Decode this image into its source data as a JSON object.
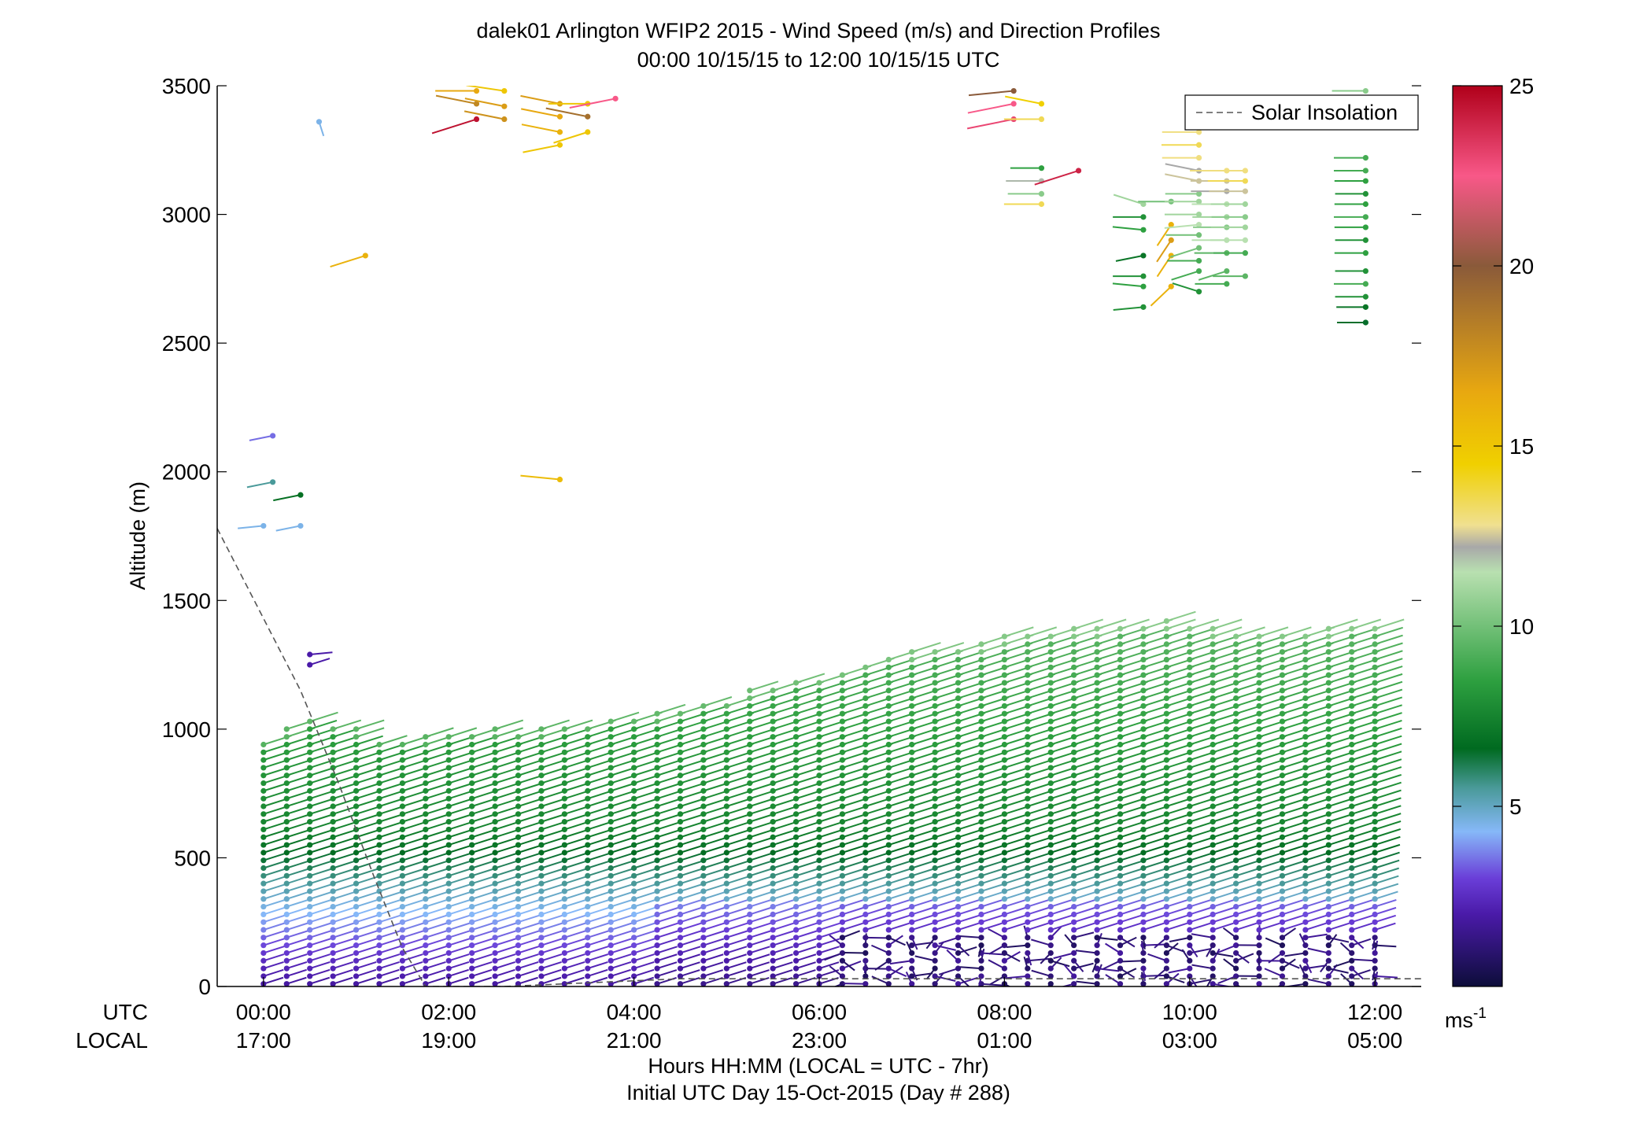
{
  "chart_data": {
    "type": "wind-barb-profile",
    "title": "dalek01 Arlington WFIP2 2015 - Wind Speed (m/s) and Direction Profiles",
    "subtitle": "00:00 10/15/15 to 12:00 10/15/15  UTC",
    "ylabel": "Altitude (m)",
    "xlabel": "Hours HH:MM  (LOCAL = UTC - 7hr)",
    "xlabel2": "Initial UTC Day 15-Oct-2015 (Day # 288)",
    "ylim": [
      0,
      3500
    ],
    "xlim_hours": [
      -0.5,
      12.5
    ],
    "yticks": [
      "0",
      "500",
      "1000",
      "1500",
      "2000",
      "2500",
      "3000",
      "3500"
    ],
    "ytick_values": [
      0,
      500,
      1000,
      1500,
      2000,
      2500,
      3000,
      3500
    ],
    "utc_label": "UTC",
    "local_label": "LOCAL",
    "xticks_utc": [
      "00:00",
      "02:00",
      "04:00",
      "06:00",
      "08:00",
      "10:00",
      "12:00"
    ],
    "xticks_local": [
      "17:00",
      "19:00",
      "21:00",
      "23:00",
      "01:00",
      "03:00",
      "05:00"
    ],
    "xtick_hours": [
      0,
      2,
      4,
      6,
      8,
      10,
      12
    ],
    "legend": {
      "entries": [
        "Solar Insolation"
      ],
      "placement": "top-right"
    },
    "colorbar": {
      "unit_label": "ms",
      "unit_exponent": "-1",
      "ticks": [
        "5",
        "10",
        "15",
        "20",
        "25"
      ],
      "tick_values": [
        5,
        10,
        15,
        20,
        25
      ],
      "range": [
        0,
        25
      ],
      "stops": [
        {
          "v": 0,
          "c": "#0d0d3a"
        },
        {
          "v": 2,
          "c": "#4a1aa8"
        },
        {
          "v": 3,
          "c": "#6a3ed8"
        },
        {
          "v": 4.3,
          "c": "#86b8f8"
        },
        {
          "v": 5.5,
          "c": "#4a9a9a"
        },
        {
          "v": 6.6,
          "c": "#006a20"
        },
        {
          "v": 8.5,
          "c": "#2ea040"
        },
        {
          "v": 11.5,
          "c": "#b8e0b0"
        },
        {
          "v": 12.2,
          "c": "#a8a8a8"
        },
        {
          "v": 12.8,
          "c": "#f0e090"
        },
        {
          "v": 14.5,
          "c": "#f0d000"
        },
        {
          "v": 16.5,
          "c": "#e8a810"
        },
        {
          "v": 20,
          "c": "#8a5a3a"
        },
        {
          "v": 22.5,
          "c": "#f85888"
        },
        {
          "v": 25,
          "c": "#b0001a"
        }
      ]
    },
    "solar_insolation": [
      {
        "hour": -0.5,
        "alt": 1780
      },
      {
        "hour": -0.1,
        "alt": 1500
      },
      {
        "hour": 0.4,
        "alt": 1150
      },
      {
        "hour": 0.8,
        "alt": 800
      },
      {
        "hour": 1.2,
        "alt": 420
      },
      {
        "hour": 1.5,
        "alt": 150
      },
      {
        "hour": 1.75,
        "alt": 0
      },
      {
        "hour": 2.6,
        "alt": 0
      },
      {
        "hour": 4.5,
        "alt": 30
      },
      {
        "hour": 12.5,
        "alt": 30
      }
    ],
    "profile_times_hours": [
      0.0,
      0.25,
      0.5,
      0.75,
      1.0,
      1.25,
      1.5,
      1.75,
      2.0,
      2.25,
      2.5,
      2.75,
      3.0,
      3.25,
      3.5,
      3.75,
      4.0,
      4.25,
      4.5,
      4.75,
      5.0,
      5.25,
      5.5,
      5.75,
      6.0,
      6.25,
      6.5,
      6.75,
      7.0,
      7.25,
      7.5,
      7.75,
      8.0,
      8.25,
      8.5,
      8.75,
      9.0,
      9.25,
      9.5,
      9.75,
      10.0,
      10.25,
      10.5,
      10.75,
      11.0,
      11.25,
      11.5,
      11.75,
      12.0
    ],
    "profile_top_altitude_m": [
      950,
      1000,
      1050,
      1020,
      1000,
      960,
      950,
      970,
      980,
      990,
      1000,
      990,
      1000,
      1010,
      1020,
      1040,
      1050,
      1060,
      1080,
      1100,
      1110,
      1150,
      1170,
      1190,
      1200,
      1230,
      1260,
      1290,
      1300,
      1310,
      1320,
      1330,
      1360,
      1370,
      1380,
      1390,
      1390,
      1400,
      1410,
      1420,
      1400,
      1390,
      1380,
      1370,
      1370,
      1380,
      1390,
      1400,
      1410
    ],
    "profile_sample_spacing_m": 30,
    "speed_profile_by_altitude": [
      {
        "alt": 0,
        "speed": 1.8
      },
      {
        "alt": 100,
        "speed": 2.5
      },
      {
        "alt": 250,
        "speed": 4.0
      },
      {
        "alt": 400,
        "speed": 5.5
      },
      {
        "alt": 600,
        "speed": 7.5
      },
      {
        "alt": 1000,
        "speed": 8.5
      },
      {
        "alt": 1400,
        "speed": 9.5
      }
    ],
    "calm_hours_near_surface": [
      6.25,
      12.0
    ],
    "upper_level_samples": [
      {
        "hour": 0.6,
        "alt": 3360,
        "speed": 4.5,
        "dir": 170
      },
      {
        "hour": 0.1,
        "alt": 2140,
        "speed": 3.5,
        "dir": 250
      },
      {
        "hour": 0.1,
        "alt": 1960,
        "speed": 5.5,
        "dir": 250
      },
      {
        "hour": 0.4,
        "alt": 1910,
        "speed": 6.8,
        "dir": 250
      },
      {
        "hour": 0.0,
        "alt": 1790,
        "speed": 4.5,
        "dir": 260
      },
      {
        "hour": 0.4,
        "alt": 1790,
        "speed": 4.5,
        "dir": 250
      },
      {
        "hour": 0.5,
        "alt": 1290,
        "speed": 2.0,
        "dir": 80
      },
      {
        "hour": 0.5,
        "alt": 1250,
        "speed": 2.0,
        "dir": 60
      },
      {
        "hour": 1.1,
        "alt": 2840,
        "speed": 16.0,
        "dir": 240
      },
      {
        "hour": 2.3,
        "alt": 3480,
        "speed": 16.5,
        "dir": 270
      },
      {
        "hour": 2.6,
        "alt": 3480,
        "speed": 15.0,
        "dir": 285
      },
      {
        "hour": 2.3,
        "alt": 3430,
        "speed": 18.0,
        "dir": 290
      },
      {
        "hour": 2.6,
        "alt": 3420,
        "speed": 17.0,
        "dir": 290
      },
      {
        "hour": 2.3,
        "alt": 3370,
        "speed": 24.5,
        "dir": 240
      },
      {
        "hour": 2.6,
        "alt": 3370,
        "speed": 17.5,
        "dir": 290
      },
      {
        "hour": 3.2,
        "alt": 3430,
        "speed": 17.0,
        "dir": 290
      },
      {
        "hour": 3.5,
        "alt": 3430,
        "speed": 15.0,
        "dir": 270
      },
      {
        "hour": 3.2,
        "alt": 3380,
        "speed": 16.5,
        "dir": 290
      },
      {
        "hour": 3.5,
        "alt": 3380,
        "speed": 19.0,
        "dir": 290
      },
      {
        "hour": 3.2,
        "alt": 3320,
        "speed": 16.0,
        "dir": 290
      },
      {
        "hour": 3.5,
        "alt": 3320,
        "speed": 15.0,
        "dir": 240
      },
      {
        "hour": 3.2,
        "alt": 3270,
        "speed": 15.0,
        "dir": 250
      },
      {
        "hour": 3.8,
        "alt": 3450,
        "speed": 22.5,
        "dir": 250
      },
      {
        "hour": 3.2,
        "alt": 1970,
        "speed": 15.5,
        "dir": 280
      },
      {
        "hour": 8.1,
        "alt": 3480,
        "speed": 20.0,
        "dir": 260
      },
      {
        "hour": 8.1,
        "alt": 3430,
        "speed": 22.5,
        "dir": 250
      },
      {
        "hour": 8.4,
        "alt": 3430,
        "speed": 14.5,
        "dir": 290
      },
      {
        "hour": 8.1,
        "alt": 3370,
        "speed": 23.0,
        "dir": 250
      },
      {
        "hour": 8.4,
        "alt": 3370,
        "speed": 13.5,
        "dir": 270
      },
      {
        "hour": 8.4,
        "alt": 3180,
        "speed": 8.5,
        "dir": 270
      },
      {
        "hour": 8.4,
        "alt": 3130,
        "speed": 12.0,
        "dir": 270
      },
      {
        "hour": 8.4,
        "alt": 3080,
        "speed": 10.5,
        "dir": 270
      },
      {
        "hour": 8.4,
        "alt": 3040,
        "speed": 13.5,
        "dir": 270
      },
      {
        "hour": 8.8,
        "alt": 3170,
        "speed": 24.0,
        "dir": 240
      },
      {
        "hour": 9.5,
        "alt": 3040,
        "speed": 11.0,
        "dir": 300
      },
      {
        "hour": 9.5,
        "alt": 2990,
        "speed": 8.0,
        "dir": 270
      },
      {
        "hour": 9.5,
        "alt": 2940,
        "speed": 8.5,
        "dir": 280
      },
      {
        "hour": 9.5,
        "alt": 2840,
        "speed": 7.0,
        "dir": 250
      },
      {
        "hour": 9.5,
        "alt": 2760,
        "speed": 8.0,
        "dir": 270
      },
      {
        "hour": 9.5,
        "alt": 2720,
        "speed": 8.5,
        "dir": 280
      },
      {
        "hour": 9.5,
        "alt": 2640,
        "speed": 8.0,
        "dir": 260
      },
      {
        "hour": 9.8,
        "alt": 3050,
        "speed": 10.0,
        "dir": 270
      },
      {
        "hour": 9.8,
        "alt": 2960,
        "speed": 16.0,
        "dir": 200
      },
      {
        "hour": 9.8,
        "alt": 2900,
        "speed": 17.0,
        "dir": 200
      },
      {
        "hour": 9.8,
        "alt": 2840,
        "speed": 16.0,
        "dir": 200
      },
      {
        "hour": 9.8,
        "alt": 2720,
        "speed": 16.0,
        "dir": 210
      },
      {
        "hour": 10.1,
        "alt": 3320,
        "speed": 13.0,
        "dir": 270
      },
      {
        "hour": 10.1,
        "alt": 3270,
        "speed": 13.5,
        "dir": 270
      },
      {
        "hour": 10.1,
        "alt": 3220,
        "speed": 13.0,
        "dir": 270
      },
      {
        "hour": 10.1,
        "alt": 3170,
        "speed": 12.2,
        "dir": 290
      },
      {
        "hour": 10.1,
        "alt": 3130,
        "speed": 12.5,
        "dir": 290
      },
      {
        "hour": 10.1,
        "alt": 3080,
        "speed": 10.5,
        "dir": 270
      },
      {
        "hour": 10.1,
        "alt": 3050,
        "speed": 11.0,
        "dir": 270
      },
      {
        "hour": 10.1,
        "alt": 3000,
        "speed": 11.0,
        "dir": 270
      },
      {
        "hour": 10.1,
        "alt": 2960,
        "speed": 11.5,
        "dir": 260
      },
      {
        "hour": 10.1,
        "alt": 2920,
        "speed": 10.0,
        "dir": 270
      },
      {
        "hour": 10.1,
        "alt": 2870,
        "speed": 10.0,
        "dir": 240
      },
      {
        "hour": 10.1,
        "alt": 2820,
        "speed": 9.0,
        "dir": 270
      },
      {
        "hour": 10.1,
        "alt": 2780,
        "speed": 9.0,
        "dir": 240
      },
      {
        "hour": 10.1,
        "alt": 2700,
        "speed": 8.0,
        "dir": 300
      },
      {
        "hour": 10.4,
        "alt": 3170,
        "speed": 13.0,
        "dir": 270
      },
      {
        "hour": 10.4,
        "alt": 3130,
        "speed": 12.5,
        "dir": 270
      },
      {
        "hour": 10.4,
        "alt": 3090,
        "speed": 12.2,
        "dir": 270
      },
      {
        "hour": 10.4,
        "alt": 3040,
        "speed": 11.5,
        "dir": 270
      },
      {
        "hour": 10.4,
        "alt": 2990,
        "speed": 11.0,
        "dir": 270
      },
      {
        "hour": 10.4,
        "alt": 2950,
        "speed": 10.5,
        "dir": 270
      },
      {
        "hour": 10.4,
        "alt": 2900,
        "speed": 11.5,
        "dir": 270
      },
      {
        "hour": 10.4,
        "alt": 2850,
        "speed": 9.5,
        "dir": 270
      },
      {
        "hour": 10.4,
        "alt": 2780,
        "speed": 9.5,
        "dir": 240
      },
      {
        "hour": 10.4,
        "alt": 2730,
        "speed": 9.0,
        "dir": 270
      },
      {
        "hour": 10.6,
        "alt": 3170,
        "speed": 13.0,
        "dir": 270
      },
      {
        "hour": 10.6,
        "alt": 3130,
        "speed": 13.5,
        "dir": 270
      },
      {
        "hour": 10.6,
        "alt": 3090,
        "speed": 12.5,
        "dir": 270
      },
      {
        "hour": 10.6,
        "alt": 3040,
        "speed": 11.0,
        "dir": 270
      },
      {
        "hour": 10.6,
        "alt": 2990,
        "speed": 10.5,
        "dir": 270
      },
      {
        "hour": 10.6,
        "alt": 2950,
        "speed": 11.0,
        "dir": 270
      },
      {
        "hour": 10.6,
        "alt": 2900,
        "speed": 11.5,
        "dir": 270
      },
      {
        "hour": 10.6,
        "alt": 2850,
        "speed": 9.0,
        "dir": 270
      },
      {
        "hour": 10.6,
        "alt": 2760,
        "speed": 9.5,
        "dir": 270
      },
      {
        "hour": 11.9,
        "alt": 3480,
        "speed": 10.5,
        "dir": 270
      },
      {
        "hour": 11.9,
        "alt": 3220,
        "speed": 9.0,
        "dir": 270
      },
      {
        "hour": 11.9,
        "alt": 3170,
        "speed": 9.0,
        "dir": 270
      },
      {
        "hour": 11.9,
        "alt": 3130,
        "speed": 8.5,
        "dir": 270
      },
      {
        "hour": 11.9,
        "alt": 3080,
        "speed": 8.0,
        "dir": 270
      },
      {
        "hour": 11.9,
        "alt": 3040,
        "speed": 8.5,
        "dir": 270
      },
      {
        "hour": 11.9,
        "alt": 2990,
        "speed": 9.0,
        "dir": 270
      },
      {
        "hour": 11.9,
        "alt": 2950,
        "speed": 8.5,
        "dir": 270
      },
      {
        "hour": 11.9,
        "alt": 2900,
        "speed": 8.0,
        "dir": 270
      },
      {
        "hour": 11.9,
        "alt": 2850,
        "speed": 8.5,
        "dir": 270
      },
      {
        "hour": 11.9,
        "alt": 2780,
        "speed": 8.0,
        "dir": 270
      },
      {
        "hour": 11.9,
        "alt": 2730,
        "speed": 9.0,
        "dir": 270
      },
      {
        "hour": 11.9,
        "alt": 2680,
        "speed": 8.0,
        "dir": 270
      },
      {
        "hour": 11.9,
        "alt": 2640,
        "speed": 7.0,
        "dir": 270
      },
      {
        "hour": 11.9,
        "alt": 2580,
        "speed": 6.5,
        "dir": 270
      }
    ]
  }
}
